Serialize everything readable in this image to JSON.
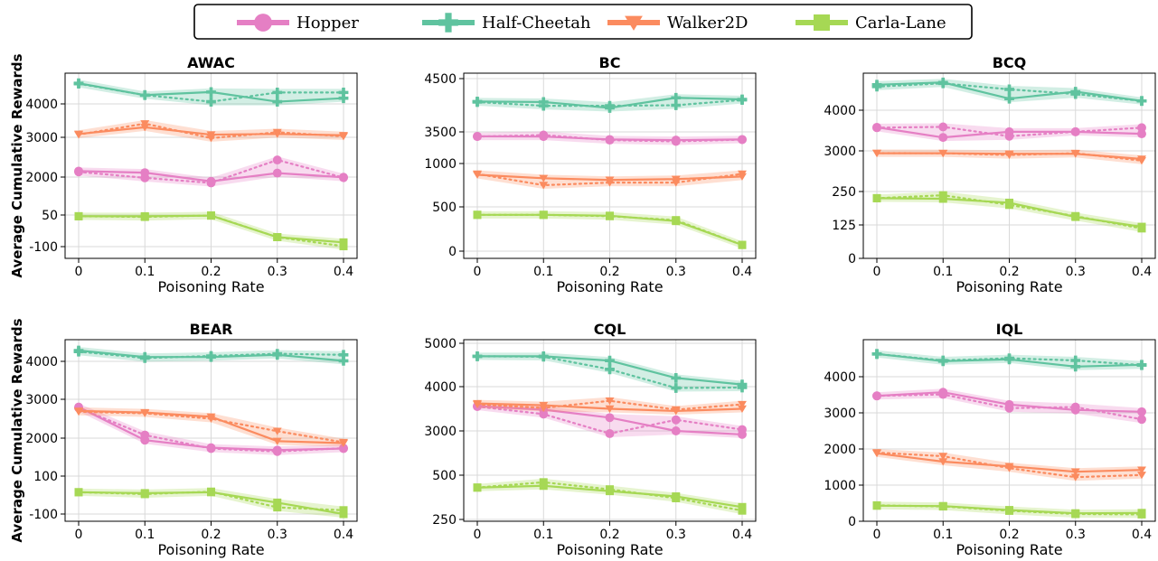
{
  "legend": [
    {
      "label": "Hopper",
      "color": "#e57fc4",
      "marker": "circle"
    },
    {
      "label": "Half-Cheetah",
      "color": "#5fc39f",
      "marker": "plus"
    },
    {
      "label": "Walker2D",
      "color": "#fb8b5f",
      "marker": "triangle-down"
    },
    {
      "label": "Carla-Lane",
      "color": "#a6d854",
      "marker": "square"
    }
  ],
  "chart_data": [
    {
      "type": "line",
      "title": "AWAC",
      "xlabel": "Poisoning Rate",
      "ylabel": "Average Cumulative Rewards",
      "categories": [
        "0",
        "0.1",
        "0.2",
        "0.3",
        "0.4"
      ],
      "ytick_labels": [
        "-100",
        "50",
        "2000",
        "3000",
        "4000"
      ],
      "y_scale": "non-uniform (printed tick labels)",
      "series": [
        {
          "name": "Hopper",
          "solid": [
            2150,
            2110,
            1780,
            2100,
            1990
          ],
          "dotted": [
            2130,
            1960,
            1700,
            2430,
            1970
          ]
        },
        {
          "name": "Half-Cheetah",
          "solid": [
            4470,
            4200,
            4270,
            4050,
            4130
          ],
          "dotted": [
            4460,
            4200,
            4050,
            4260,
            4260
          ]
        },
        {
          "name": "Walker2D",
          "solid": [
            3100,
            3300,
            3080,
            3100,
            3060
          ],
          "dotted": [
            3080,
            3410,
            2980,
            3150,
            3030
          ]
        },
        {
          "name": "Carla-Lane",
          "solid": [
            44,
            44,
            47,
            -55,
            -80
          ],
          "dotted": [
            44,
            41,
            48,
            -55,
            -98
          ]
        }
      ]
    },
    {
      "type": "line",
      "title": "BC",
      "xlabel": "Poisoning Rate",
      "ylabel": "",
      "categories": [
        "0",
        "0.1",
        "0.2",
        "0.3",
        "0.4"
      ],
      "ytick_labels": [
        "0",
        "500",
        "1000",
        "3500",
        "4500"
      ],
      "y_scale": "non-uniform (printed tick labels)",
      "series": [
        {
          "name": "Hopper",
          "solid": [
            3150,
            3130,
            2900,
            2850,
            2900
          ],
          "dotted": [
            3130,
            3250,
            2850,
            2750,
            2890
          ]
        },
        {
          "name": "Half-Cheetah",
          "solid": [
            4070,
            4060,
            3950,
            4140,
            4110
          ],
          "dotted": [
            4060,
            3990,
            3990,
            4000,
            4100
          ]
        },
        {
          "name": "Walker2D",
          "solid": [
            870,
            830,
            810,
            820,
            850
          ],
          "dotted": [
            880,
            750,
            780,
            780,
            880
          ]
        },
        {
          "name": "Carla-Lane",
          "solid": [
            410,
            410,
            400,
            340,
            70
          ],
          "dotted": [
            410,
            410,
            395,
            350,
            70
          ]
        }
      ]
    },
    {
      "type": "line",
      "title": "BCQ",
      "xlabel": "Poisoning Rate",
      "ylabel": "",
      "categories": [
        "0",
        "0.1",
        "0.2",
        "0.3",
        "0.4"
      ],
      "ytick_labels": [
        "0",
        "125",
        "250",
        "3000",
        "4000"
      ],
      "y_scale": "non-uniform (printed tick labels)",
      "series": [
        {
          "name": "Hopper",
          "solid": [
            3580,
            3330,
            3470,
            3470,
            3420
          ],
          "dotted": [
            3570,
            3590,
            3360,
            3470,
            3570
          ]
        },
        {
          "name": "Half-Cheetah",
          "solid": [
            4550,
            4600,
            4250,
            4400,
            4200
          ],
          "dotted": [
            4510,
            4580,
            4450,
            4350,
            4200
          ]
        },
        {
          "name": "Walker2D",
          "solid": [
            2840,
            2840,
            2800,
            2800,
            2450
          ],
          "dotted": [
            2850,
            2840,
            2720,
            2840,
            2340
          ]
        },
        {
          "name": "Carla-Lane",
          "solid": [
            225,
            223,
            208,
            155,
            118
          ],
          "dotted": [
            225,
            236,
            200,
            158,
            112
          ]
        }
      ]
    },
    {
      "type": "line",
      "title": "BEAR",
      "xlabel": "Poisoning Rate",
      "ylabel": "Average Cumulative Rewards",
      "categories": [
        "0",
        "0.1",
        "0.2",
        "0.3",
        "0.4"
      ],
      "ytick_labels": [
        "-100",
        "100",
        "2000",
        "3000",
        "4000"
      ],
      "y_scale": "non-uniform (printed tick labels)",
      "series": [
        {
          "name": "Hopper",
          "solid": [
            2800,
            1900,
            1520,
            1400,
            1480
          ],
          "dotted": [
            2780,
            2080,
            1480,
            1330,
            1500
          ]
        },
        {
          "name": "Half-Cheetah",
          "solid": [
            4200,
            4080,
            4080,
            4120,
            4010
          ],
          "dotted": [
            4180,
            4060,
            4100,
            4140,
            4120
          ]
        },
        {
          "name": "Walker2D",
          "solid": [
            2700,
            2660,
            2550,
            1850,
            1750
          ],
          "dotted": [
            2680,
            2640,
            2500,
            2180,
            1790
          ]
        },
        {
          "name": "Carla-Lane",
          "solid": [
            15,
            10,
            15,
            -40,
            -100
          ],
          "dotted": [
            15,
            5,
            18,
            -65,
            -80
          ]
        }
      ]
    },
    {
      "type": "line",
      "title": "CQL",
      "xlabel": "Poisoning Rate",
      "ylabel": "",
      "categories": [
        "0",
        "0.1",
        "0.2",
        "0.3",
        "0.4"
      ],
      "ytick_labels": [
        "250",
        "500",
        "3000",
        "4000",
        "5000"
      ],
      "y_scale": "non-uniform (printed tick labels)",
      "series": [
        {
          "name": "Hopper",
          "solid": [
            3560,
            3480,
            3300,
            3000,
            2800
          ],
          "dotted": [
            3550,
            3380,
            2850,
            3250,
            3030
          ]
        },
        {
          "name": "Half-Cheetah",
          "solid": [
            4700,
            4700,
            4600,
            4200,
            4050
          ],
          "dotted": [
            4700,
            4690,
            4400,
            3970,
            3980
          ]
        },
        {
          "name": "Walker2D",
          "solid": [
            3620,
            3580,
            3500,
            3450,
            3500
          ],
          "dotted": [
            3600,
            3520,
            3680,
            3480,
            3600
          ]
        },
        {
          "name": "Carla-Lane",
          "solid": [
            430,
            440,
            410,
            380,
            320
          ],
          "dotted": [
            430,
            460,
            420,
            370,
            300
          ]
        }
      ]
    },
    {
      "type": "line",
      "title": "IQL",
      "xlabel": "Poisoning Rate",
      "ylabel": "",
      "categories": [
        "0",
        "0.1",
        "0.2",
        "0.3",
        "0.4"
      ],
      "ytick_labels": [
        "0",
        "1000",
        "2000",
        "3000",
        "4000"
      ],
      "ylim": [
        -100,
        4900
      ],
      "series": [
        {
          "name": "Hopper",
          "solid": [
            3470,
            3570,
            3230,
            3080,
            3030
          ],
          "dotted": [
            3470,
            3510,
            3130,
            3160,
            2820
          ]
        },
        {
          "name": "Half-Cheetah",
          "solid": [
            4630,
            4430,
            4480,
            4280,
            4330
          ],
          "dotted": [
            4630,
            4450,
            4510,
            4450,
            4320
          ]
        },
        {
          "name": "Walker2D",
          "solid": [
            1880,
            1650,
            1520,
            1370,
            1420
          ],
          "dotted": [
            1900,
            1800,
            1470,
            1220,
            1280
          ]
        },
        {
          "name": "Carla-Lane",
          "solid": [
            430,
            420,
            310,
            220,
            230
          ],
          "dotted": [
            440,
            410,
            290,
            200,
            190
          ]
        }
      ]
    }
  ]
}
